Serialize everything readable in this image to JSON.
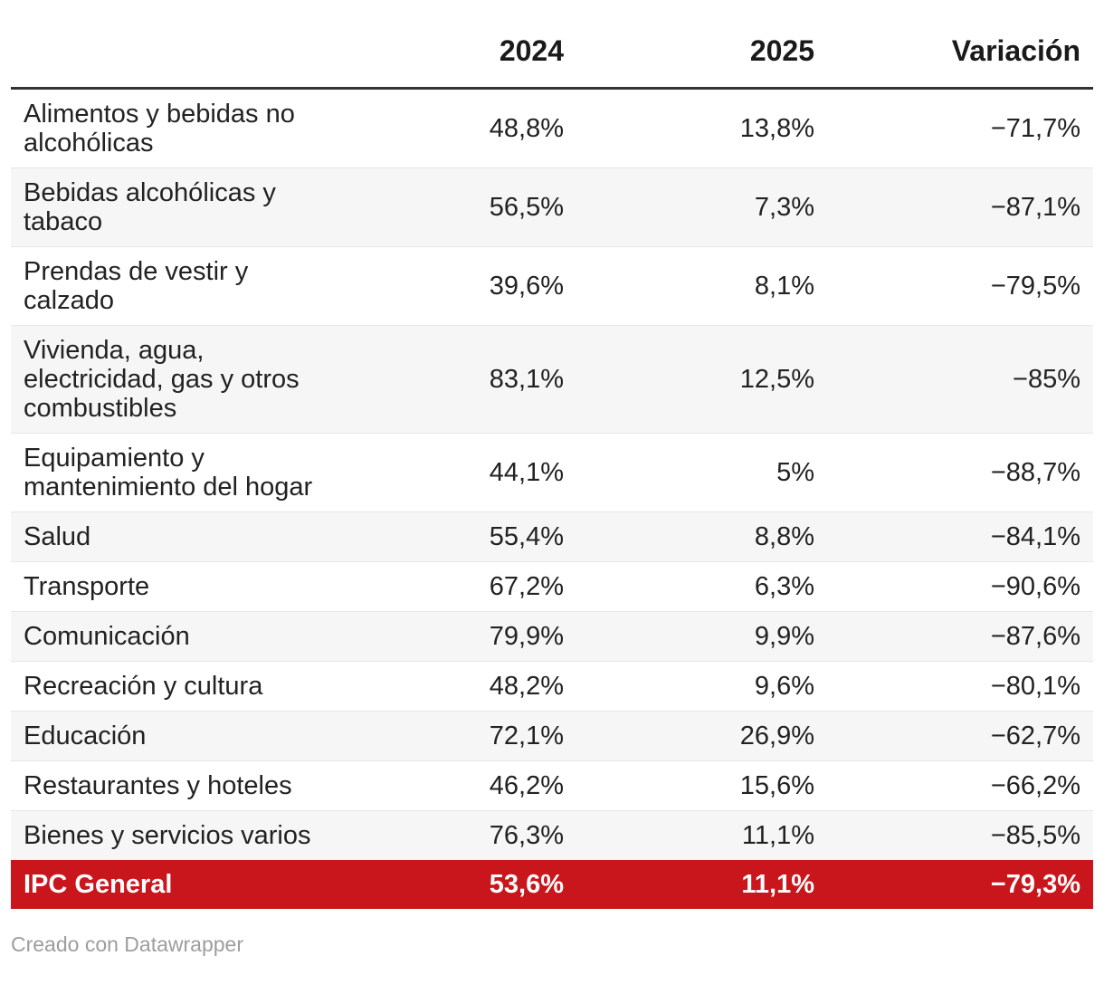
{
  "chart_data": {
    "type": "table",
    "columns": [
      "",
      "2024",
      "2025",
      "Variación"
    ],
    "rows": [
      [
        "Alimentos y bebidas no alcohólicas",
        "48,8%",
        "13,8%",
        "−71,7%"
      ],
      [
        "Bebidas alcohólicas y tabaco",
        "56,5%",
        "7,3%",
        "−87,1%"
      ],
      [
        "Prendas de vestir y calzado",
        "39,6%",
        "8,1%",
        "−79,5%"
      ],
      [
        "Vivienda, agua, electricidad, gas y otros combustibles",
        "83,1%",
        "12,5%",
        "−85%"
      ],
      [
        "Equipamiento y mantenimiento del hogar",
        "44,1%",
        "5%",
        "−88,7%"
      ],
      [
        "Salud",
        "55,4%",
        "8,8%",
        "−84,1%"
      ],
      [
        "Transporte",
        "67,2%",
        "6,3%",
        "−90,6%"
      ],
      [
        "Comunicación",
        "79,9%",
        "9,9%",
        "−87,6%"
      ],
      [
        "Recreación y cultura",
        "48,2%",
        "9,6%",
        "−80,1%"
      ],
      [
        "Educación",
        "72,1%",
        "26,9%",
        "−62,7%"
      ],
      [
        "Restaurantes y hoteles",
        "46,2%",
        "15,6%",
        "−66,2%"
      ],
      [
        "Bienes y servicios varios",
        "76,3%",
        "11,1%",
        "−85,5%"
      ]
    ],
    "total_row": [
      "IPC General",
      "53,6%",
      "11,1%",
      "−79,3%"
    ]
  },
  "footer": {
    "credit": "Creado con Datawrapper"
  },
  "colors": {
    "total_background": "#c9161c",
    "total_text": "#ffffff",
    "header_rule": "#333333",
    "stripe": "#f6f6f6",
    "body_text": "#222222",
    "credit_text": "#9d9d9d"
  }
}
